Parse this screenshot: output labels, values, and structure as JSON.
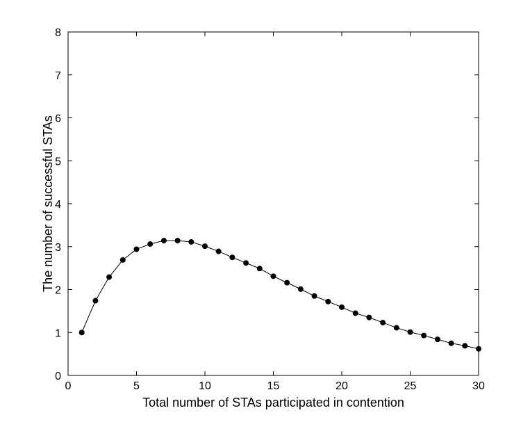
{
  "chart_data": {
    "type": "line",
    "xlabel": "Total number of STAs participated in contention",
    "ylabel": "The number of successful STAs",
    "xlim": [
      0,
      30
    ],
    "ylim": [
      0,
      8
    ],
    "xticks": [
      "0",
      "5",
      "10",
      "15",
      "20",
      "25",
      "30"
    ],
    "yticks": [
      "0",
      "1",
      "2",
      "3",
      "4",
      "5",
      "6",
      "7",
      "8"
    ],
    "grid": false,
    "marker": "filled-circle",
    "colors": {
      "line": "#000000",
      "marker": "#000000",
      "axis": "#000000"
    },
    "series": [
      {
        "x": [
          1,
          2,
          3,
          4,
          5,
          6,
          7,
          8,
          9,
          10,
          11,
          12,
          13,
          14,
          15,
          16,
          17,
          18,
          19,
          20,
          21,
          22,
          23,
          24,
          25,
          26,
          27,
          28,
          29,
          30
        ],
        "values": [
          1.0,
          1.74,
          2.29,
          2.69,
          2.94,
          3.06,
          3.14,
          3.14,
          3.11,
          3.01,
          2.89,
          2.75,
          2.62,
          2.49,
          2.31,
          2.16,
          2.01,
          1.85,
          1.72,
          1.59,
          1.45,
          1.35,
          1.23,
          1.11,
          1.01,
          0.93,
          0.84,
          0.75,
          0.69,
          0.62
        ]
      }
    ]
  }
}
